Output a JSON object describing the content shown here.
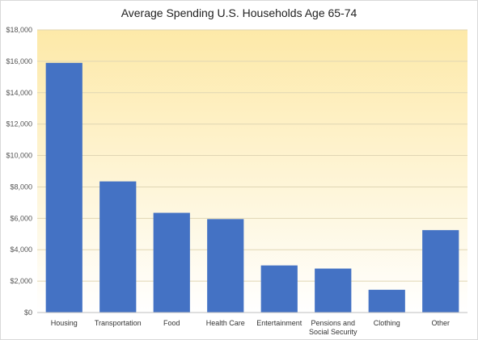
{
  "chart_data": {
    "type": "bar",
    "title": "Average Spending  U.S. Households  Age 65-74",
    "xlabel": "",
    "ylabel": "",
    "categories": [
      [
        "Housing"
      ],
      [
        "Transportation"
      ],
      [
        "Food"
      ],
      [
        "Health Care"
      ],
      [
        "Entertainment"
      ],
      [
        "Pensions and",
        "Social Security"
      ],
      [
        "Clothing"
      ],
      [
        "Other"
      ]
    ],
    "values": [
      15900,
      8350,
      6350,
      5950,
      3000,
      2800,
      1450,
      5250
    ],
    "ylim": [
      0,
      18000
    ],
    "y_ticks": [
      0,
      2000,
      4000,
      6000,
      8000,
      10000,
      12000,
      14000,
      16000,
      18000
    ],
    "y_tick_labels": [
      "$0",
      "$2,000",
      "$4,000",
      "$6,000",
      "$8,000",
      "$10,000",
      "$12,000",
      "$14,000",
      "$16,000",
      "$18,000"
    ],
    "grid": true,
    "legend": "none",
    "bar_color": "#4472c4",
    "plot_background_top": "#fde9a8",
    "plot_background_bottom": "#ffffff",
    "grid_color": "#e0d6b4"
  }
}
